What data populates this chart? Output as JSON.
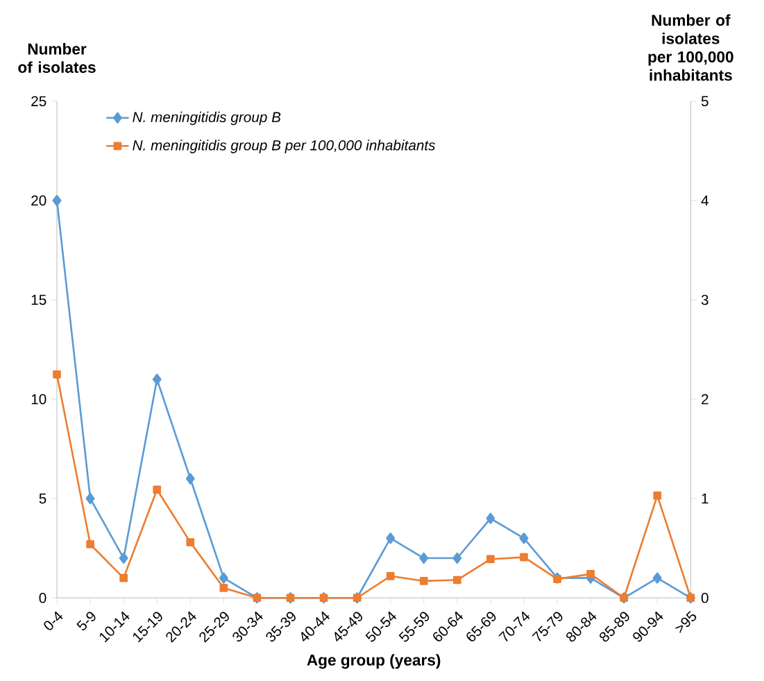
{
  "chart_data": {
    "type": "line",
    "xlabel": "Age group (years)",
    "ylabel": "Number of isolates",
    "y2label": "Number of isolates per 100,000 inhabitants",
    "categories": [
      "0-4",
      "5-9",
      "10-14",
      "15-19",
      "20-24",
      "25-29",
      "30-34",
      "35-39",
      "40-44",
      "45-49",
      "50-54",
      "55-59",
      "60-64",
      "65-69",
      "70-74",
      "75-79",
      "80-84",
      "85-89",
      "90-94",
      ">95"
    ],
    "series": [
      {
        "name": "N. meningitidis group B",
        "color": "#5b9bd5",
        "marker": "diamond",
        "values": [
          20,
          5,
          2,
          11,
          6,
          1,
          0,
          0,
          0,
          0,
          3,
          2,
          2,
          4,
          3,
          1,
          1,
          0,
          1,
          0
        ]
      },
      {
        "name": "N. meningitidis group B per 100,000 inhabitants",
        "color": "#ed7d31",
        "marker": "square",
        "axis": "y2",
        "values": [
          2.25,
          0.54,
          0.2,
          1.09,
          0.56,
          0.1,
          0,
          0,
          0,
          0,
          0.22,
          0.17,
          0.18,
          0.39,
          0.41,
          0.19,
          0.24,
          0,
          1.03,
          0
        ]
      }
    ],
    "ylim": [
      0,
      25
    ],
    "yticks": [
      0,
      5,
      10,
      15,
      20,
      25
    ],
    "y2lim": [
      0,
      5
    ],
    "y2ticks": [
      0,
      1,
      2,
      3,
      4,
      5
    ],
    "grid": false,
    "legend": "top left",
    "line_style": "solid"
  }
}
